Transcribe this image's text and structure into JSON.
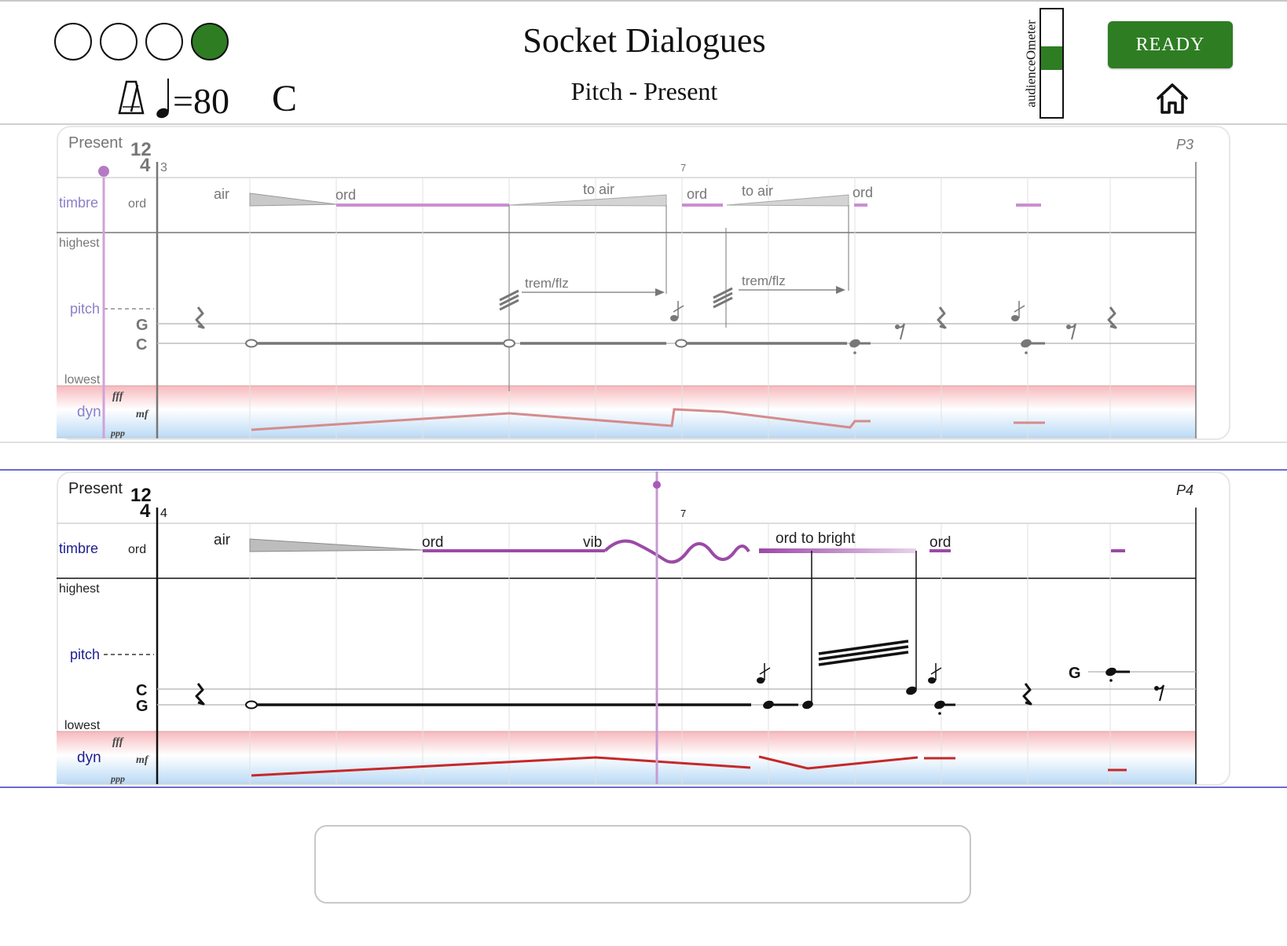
{
  "header": {
    "title": "Socket Dialogues",
    "subtitle": "Pitch - Present",
    "beat_indicators": [
      false,
      false,
      false,
      true
    ],
    "tempo_value": "=80",
    "key": "C",
    "audience_meter_label": "audienceOmeter",
    "audience_meter_level": 0.55,
    "ready_label": "READY",
    "accent_color": "#2e7d23"
  },
  "staves": [
    {
      "section": "Present",
      "time_sig_top": "12",
      "time_sig_bottom": "4",
      "start_measure": "3",
      "mid_measure": "7",
      "page_label": "P3",
      "row_labels": {
        "timbre": "timbre",
        "timbre_default": "ord",
        "highest": "highest",
        "pitch": "pitch",
        "lowest": "lowest",
        "dyn": "dyn"
      },
      "dyn_marks": {
        "top": "fff",
        "mid": "mf",
        "bottom": "ppp"
      },
      "note_letters": [
        "G",
        "C"
      ],
      "timbre_labels": [
        "air",
        "ord",
        "to air",
        "ord",
        "to air",
        "ord"
      ],
      "technique_labels": [
        "trem/flz",
        "trem/flz"
      ],
      "active": false
    },
    {
      "section": "Present",
      "time_sig_top": "12",
      "time_sig_bottom": "4",
      "start_measure": "4",
      "mid_measure": "7",
      "page_label": "P4",
      "row_labels": {
        "timbre": "timbre",
        "timbre_default": "ord",
        "highest": "highest",
        "pitch": "pitch",
        "lowest": "lowest",
        "dyn": "dyn"
      },
      "dyn_marks": {
        "top": "fff",
        "mid": "mf",
        "bottom": "ppp"
      },
      "note_letters": [
        "C",
        "G"
      ],
      "extra_note_letter": "G",
      "timbre_labels": [
        "air",
        "ord",
        "vib",
        "ord to bright",
        "ord"
      ],
      "active": true
    }
  ],
  "response_input": {
    "value": "",
    "placeholder": ""
  },
  "colors": {
    "timbre_line": "#9b4aa6",
    "dyn_line": "#c62828",
    "cursor": "#a85ab8",
    "blue_rule": "#6b6bd3"
  }
}
